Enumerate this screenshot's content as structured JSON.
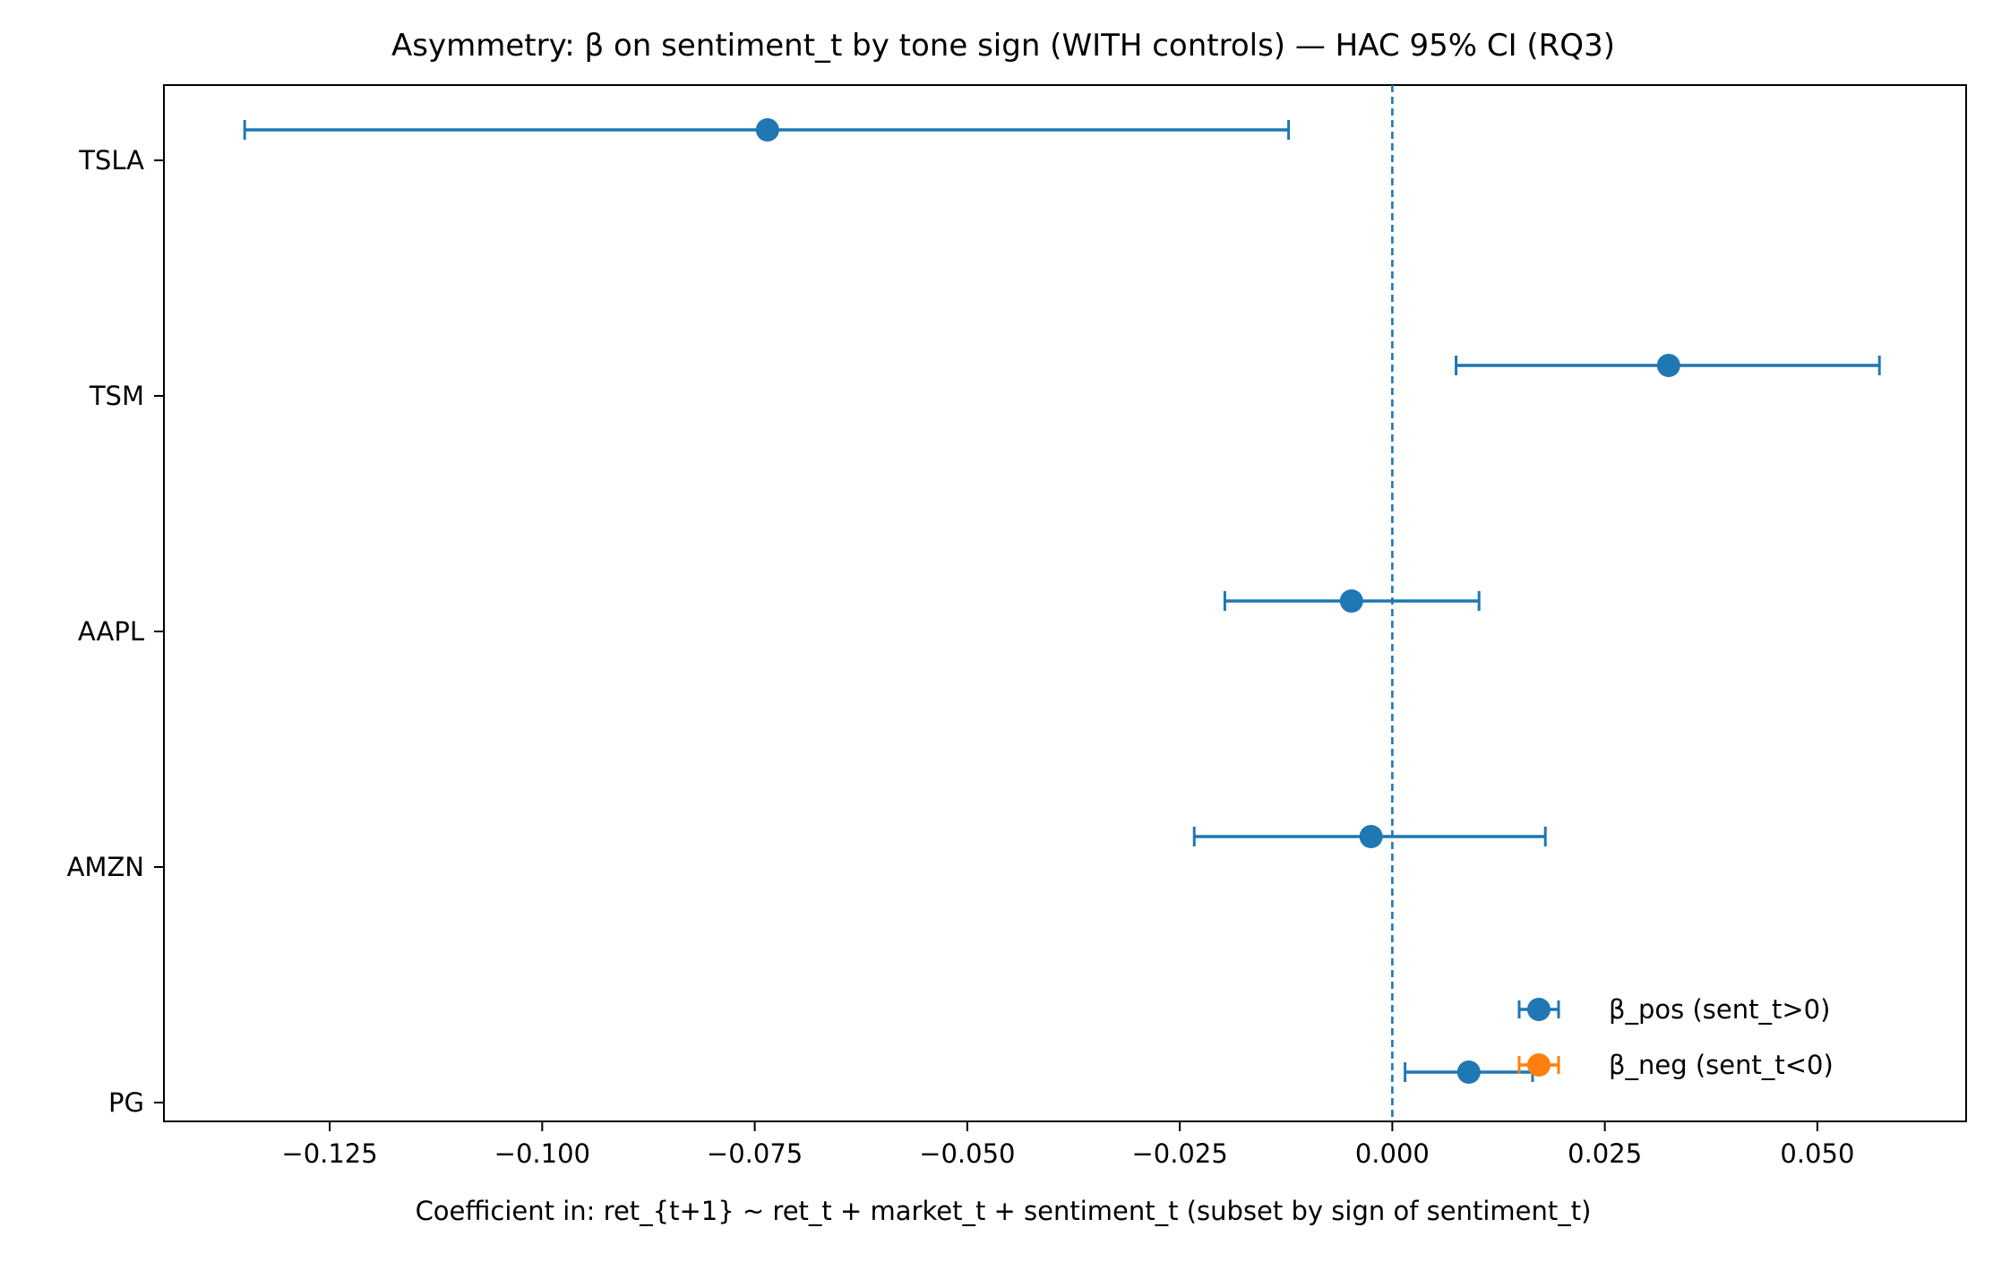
{
  "chart_data": {
    "type": "errorbar",
    "title": "Asymmetry: β on sentiment_t by tone sign (WITH controls) — HAC 95% CI  (RQ3)",
    "xlabel": "Coefficient in:  ret_{t+1} ~ ret_t + market_t + sentiment_t   (subset by sign of sentiment_t)",
    "ylabel": "",
    "categories": [
      "TSLA",
      "TSM",
      "AAPL",
      "AMZN",
      "PG"
    ],
    "xlim": [
      -0.1445,
      0.0675
    ],
    "xticks": [
      -0.125,
      -0.1,
      -0.075,
      -0.05,
      -0.025,
      0.0,
      0.025,
      0.05
    ],
    "xtick_labels": [
      "−0.125",
      "−0.100",
      "−0.075",
      "−0.050",
      "−0.025",
      "0.000",
      "0.025",
      "0.050"
    ],
    "reference_line": {
      "x": 0.0,
      "style": "dashed",
      "color": "#1f77b4"
    },
    "grid": false,
    "legend_position": "lower right",
    "series": [
      {
        "name": "β_pos (sent_t>0)",
        "color": "#1f77b4",
        "points": [
          {
            "category": "TSLA",
            "estimate": -0.0735,
            "ci_low": -0.135,
            "ci_high": -0.0122
          },
          {
            "category": "TSM",
            "estimate": 0.0325,
            "ci_low": 0.0075,
            "ci_high": 0.0573
          },
          {
            "category": "AAPL",
            "estimate": -0.0048,
            "ci_low": -0.0197,
            "ci_high": 0.0102
          },
          {
            "category": "AMZN",
            "estimate": -0.0025,
            "ci_low": -0.0233,
            "ci_high": 0.018
          },
          {
            "category": "PG",
            "estimate": 0.009,
            "ci_low": 0.0015,
            "ci_high": 0.0165
          }
        ]
      },
      {
        "name": "β_neg (sent_t<0)",
        "color": "#ff7f0e",
        "points": []
      }
    ]
  }
}
